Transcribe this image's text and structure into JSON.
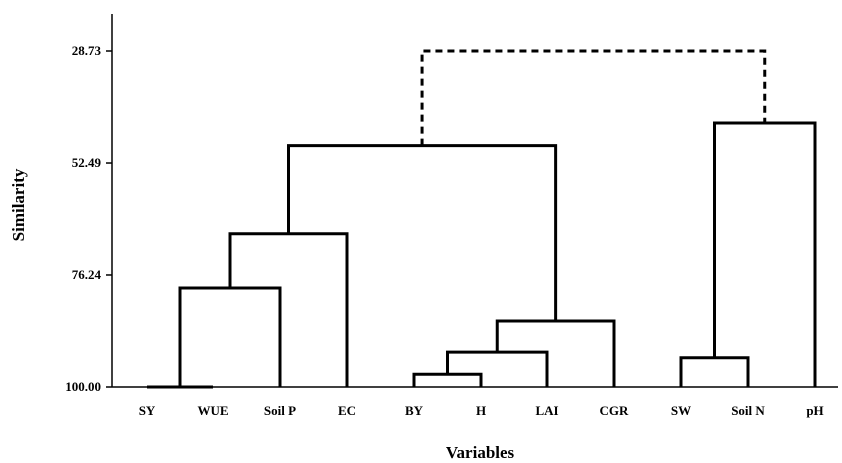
{
  "chart_data": {
    "type": "dendrogram",
    "title": "",
    "xlabel": "Variables",
    "ylabel": "Similarity",
    "yticks": [
      "28.73",
      "52.49",
      "76.24",
      "100.00"
    ],
    "ylim": [
      28.73,
      100.0
    ],
    "y_inverted": true,
    "leaves": [
      "SY",
      "WUE",
      "Soil P",
      "EC",
      "BY",
      "H",
      "LAI",
      "CGR",
      "SW",
      "Soil N",
      "pH"
    ],
    "merges": [
      {
        "left": "SY",
        "right": "WUE",
        "similarity": 100.0,
        "style": "solid"
      },
      {
        "left": "SY,WUE",
        "right": "Soil P",
        "similarity": 79.0,
        "style": "solid"
      },
      {
        "left": "SY,WUE,Soil P",
        "right": "EC",
        "similarity": 67.5,
        "style": "solid"
      },
      {
        "left": "BY",
        "right": "H",
        "similarity": 97.3,
        "style": "solid"
      },
      {
        "left": "BY,H",
        "right": "LAI",
        "similarity": 92.6,
        "style": "solid"
      },
      {
        "left": "BY,H,LAI",
        "right": "CGR",
        "similarity": 86.0,
        "style": "solid"
      },
      {
        "left": "SY,WUE,Soil P,EC",
        "right": "BY,H,LAI,CGR",
        "similarity": 48.8,
        "style": "solid"
      },
      {
        "left": "SW",
        "right": "Soil N",
        "similarity": 93.8,
        "style": "solid"
      },
      {
        "left": "SW,Soil N",
        "right": "pH",
        "similarity": 44.0,
        "style": "solid"
      },
      {
        "left": "SY,WUE,Soil P,EC,BY,H,LAI,CGR",
        "right": "SW,Soil N,pH",
        "similarity": 28.73,
        "style": "dashed"
      }
    ],
    "grid": false,
    "legend": "none"
  }
}
